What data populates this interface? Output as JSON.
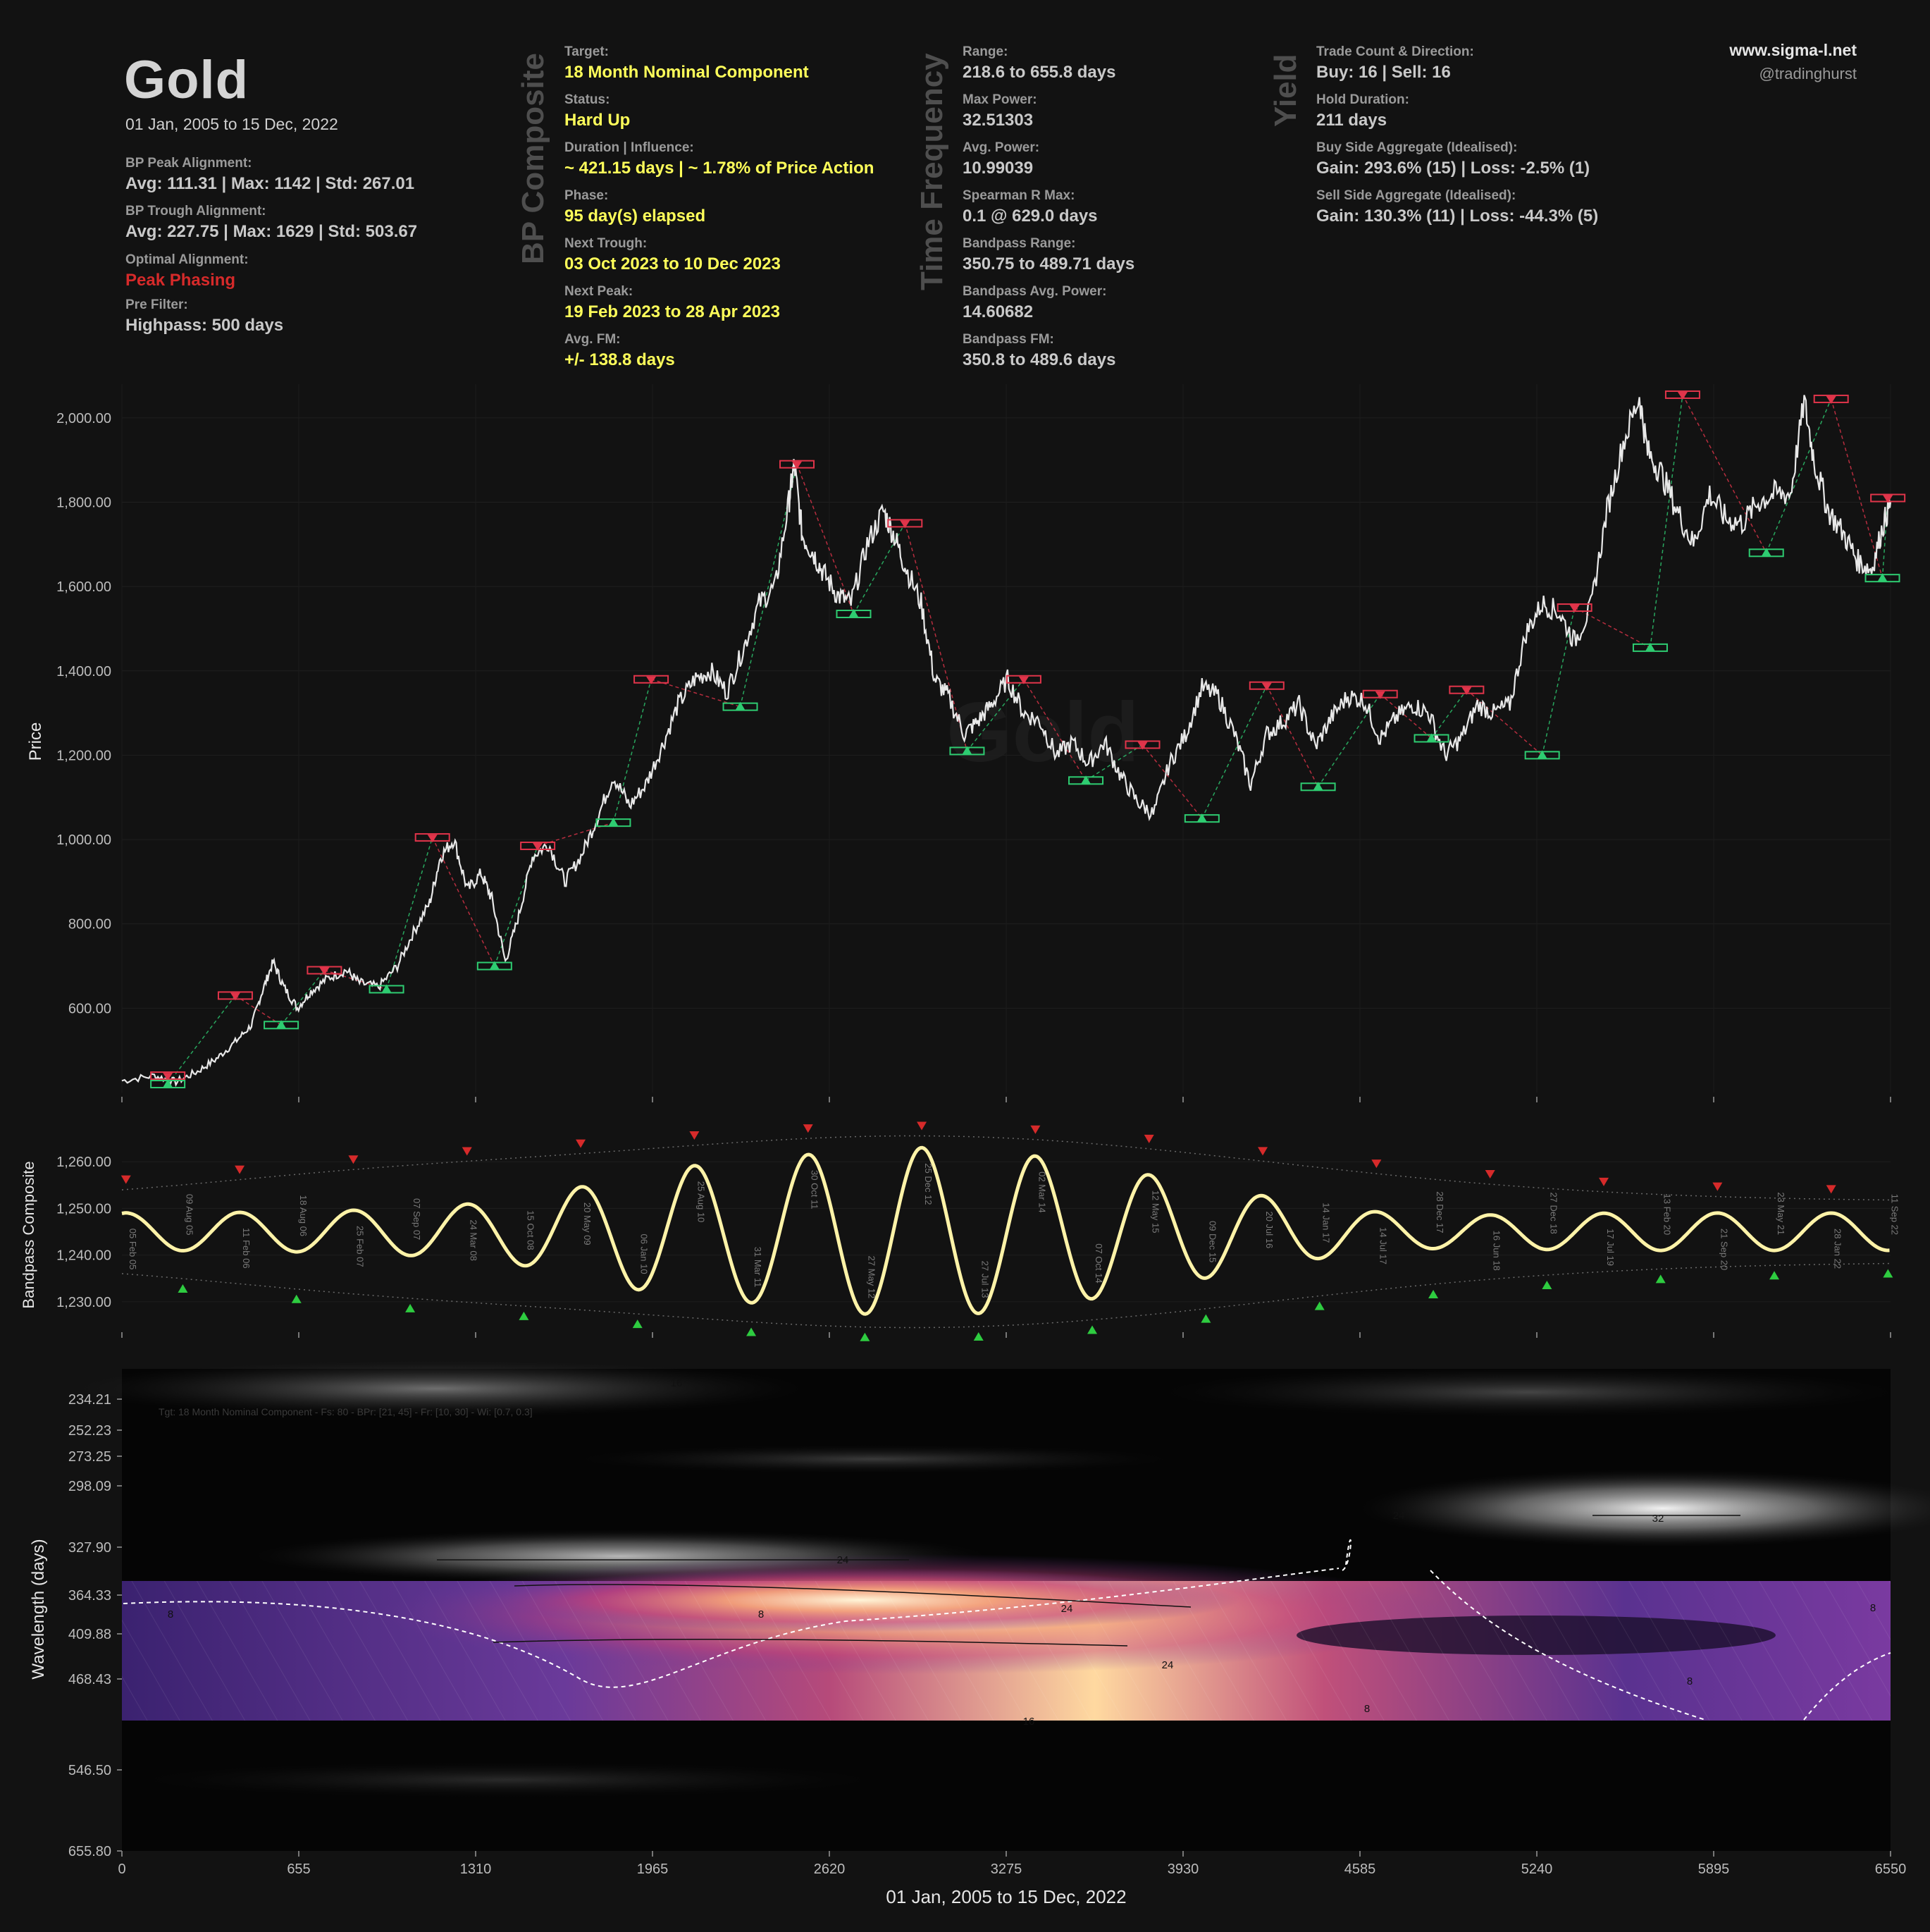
{
  "header": {
    "title": "Gold",
    "date_range": "01 Jan, 2005 to 15 Dec, 2022",
    "bp_peak_label": "BP Peak Alignment:",
    "bp_peak_value": "Avg: 111.31 | Max: 1142 | Std: 267.01",
    "bp_trough_label": "BP Trough Alignment:",
    "bp_trough_value": "Avg: 227.75 | Max: 1629 | Std: 503.67",
    "optimal_label": "Optimal Alignment:",
    "optimal_value": "Peak Phasing",
    "prefilter_label": "Pre Filter:",
    "prefilter_value": "Highpass: 500 days"
  },
  "bp_composite": {
    "heading": "BP Composite",
    "target_label": "Target:",
    "target_value": "18 Month Nominal Component",
    "status_label": "Status:",
    "status_value": "Hard Up",
    "duration_label": "Duration | Influence:",
    "duration_value": "~ 421.15 days | ~ 1.78% of Price Action",
    "phase_label": "Phase:",
    "phase_value": "95 day(s) elapsed",
    "next_trough_label": "Next Trough:",
    "next_trough_value": "03 Oct 2023 to 10 Dec 2023",
    "next_peak_label": "Next Peak:",
    "next_peak_value": "19 Feb 2023 to 28 Apr 2023",
    "avg_fm_label": "Avg. FM:",
    "avg_fm_value": "+/- 138.8 days"
  },
  "time_frequency": {
    "heading": "Time Frequency",
    "range_label": "Range:",
    "range_value": "218.6 to 655.8 days",
    "max_power_label": "Max Power:",
    "max_power_value": "32.51303",
    "avg_power_label": "Avg. Power:",
    "avg_power_value": "10.99039",
    "spearman_label": "Spearman R Max:",
    "spearman_value": "0.1 @ 629.0 days",
    "bp_range_label": "Bandpass Range:",
    "bp_range_value": "350.75 to 489.71 days",
    "bp_avg_power_label": "Bandpass Avg. Power:",
    "bp_avg_power_value": "14.60682",
    "bp_fm_label": "Bandpass FM:",
    "bp_fm_value": "350.8 to 489.6 days"
  },
  "yield": {
    "heading": "Yield",
    "trade_count_label": "Trade Count & Direction:",
    "trade_count_value": "Buy: 16 | Sell: 16",
    "hold_label": "Hold Duration:",
    "hold_value": "211 days",
    "buy_label": "Buy Side Aggregate (Idealised):",
    "buy_value": "Gain: 293.6% (15) | Loss: -2.5% (1)",
    "sell_label": "Sell Side Aggregate (Idealised):",
    "sell_value": "Gain: 130.3% (11) | Loss: -44.3% (5)"
  },
  "branding": {
    "site": "www.sigma-l.net",
    "handle": "@tradinghurst",
    "watermark": "Gold"
  },
  "colors": {
    "background": "#121212",
    "price": "#e8e8e8",
    "peak": "#e0344a",
    "trough": "#2ecc71",
    "bandpass": "#fff3a8"
  },
  "chart_data": [
    {
      "type": "line",
      "ylabel": "Price",
      "ylim": [
        400,
        2080
      ],
      "yticks": [
        "600.00",
        "800.00",
        "1,000.00",
        "1,200.00",
        "1,400.00",
        "1,600.00",
        "1,800.00",
        "2,000.00"
      ],
      "ytick_values": [
        600,
        800,
        1000,
        1200,
        1400,
        1600,
        1800,
        2000
      ],
      "xlim": [
        0,
        6550
      ],
      "series": [
        {
          "x": [
            0,
            120,
            200,
            280,
            350,
            420,
            480,
            520,
            560,
            600,
            650,
            700,
            760,
            830,
            880,
            950,
            1020,
            1080,
            1140,
            1180,
            1230,
            1280,
            1330,
            1370,
            1420,
            1470,
            1520,
            1580,
            1640,
            1700,
            1760,
            1820,
            1880,
            1940,
            2000,
            2060,
            2120,
            2180,
            2240,
            2300,
            2360,
            2420,
            2470,
            2490,
            2520,
            2560,
            2600,
            2650,
            2700,
            2760,
            2820,
            2860,
            2900,
            2960,
            3010,
            3060,
            3120,
            3170,
            3220,
            3280,
            3340,
            3400,
            3460,
            3520,
            3580,
            3640,
            3700,
            3760,
            3820,
            3880,
            3940,
            4000,
            4060,
            4120,
            4180,
            4240,
            4300,
            4360,
            4420,
            4480,
            4540,
            4600,
            4660,
            4720,
            4780,
            4840,
            4900,
            4960,
            5020,
            5080,
            5140,
            5200,
            5260,
            5320,
            5380,
            5440,
            5500,
            5560,
            5620,
            5650,
            5700,
            5760,
            5820,
            5880,
            5940,
            6000,
            6060,
            6120,
            6180,
            6230,
            6270,
            6320,
            6380,
            6430,
            6480,
            6520,
            6550
          ],
          "y": [
            428,
            440,
            425,
            450,
            480,
            520,
            560,
            640,
            710,
            650,
            600,
            640,
            670,
            690,
            660,
            650,
            700,
            780,
            850,
            960,
            1000,
            880,
            920,
            860,
            710,
            820,
            960,
            990,
            900,
            960,
            1050,
            1150,
            1080,
            1130,
            1220,
            1320,
            1380,
            1400,
            1350,
            1450,
            1560,
            1600,
            1800,
            1890,
            1720,
            1680,
            1630,
            1580,
            1560,
            1700,
            1780,
            1720,
            1650,
            1560,
            1380,
            1340,
            1250,
            1280,
            1320,
            1380,
            1300,
            1280,
            1200,
            1230,
            1180,
            1230,
            1150,
            1090,
            1060,
            1180,
            1250,
            1360,
            1340,
            1250,
            1130,
            1250,
            1280,
            1320,
            1220,
            1290,
            1340,
            1330,
            1240,
            1290,
            1320,
            1300,
            1200,
            1240,
            1320,
            1300,
            1320,
            1490,
            1560,
            1540,
            1470,
            1550,
            1780,
            1940,
            2050,
            1920,
            1870,
            1780,
            1700,
            1820,
            1760,
            1750,
            1800,
            1820,
            1820,
            2040,
            1890,
            1780,
            1720,
            1660,
            1640,
            1740,
            1800
          ]
        }
      ],
      "peak_markers": [
        {
          "x": 170,
          "y": 440
        },
        {
          "x": 420,
          "y": 630
        },
        {
          "x": 750,
          "y": 690
        },
        {
          "x": 1150,
          "y": 1005
        },
        {
          "x": 1540,
          "y": 985
        },
        {
          "x": 1960,
          "y": 1380
        },
        {
          "x": 2500,
          "y": 1890
        },
        {
          "x": 2900,
          "y": 1750
        },
        {
          "x": 3340,
          "y": 1380
        },
        {
          "x": 3780,
          "y": 1225
        },
        {
          "x": 4240,
          "y": 1365
        },
        {
          "x": 4660,
          "y": 1345
        },
        {
          "x": 4980,
          "y": 1355
        },
        {
          "x": 5380,
          "y": 1550
        },
        {
          "x": 5780,
          "y": 2055
        },
        {
          "x": 6330,
          "y": 2045
        },
        {
          "x": 6540,
          "y": 1810
        }
      ],
      "trough_markers": [
        {
          "x": 170,
          "y": 420
        },
        {
          "x": 590,
          "y": 560
        },
        {
          "x": 980,
          "y": 645
        },
        {
          "x": 1380,
          "y": 700
        },
        {
          "x": 1820,
          "y": 1040
        },
        {
          "x": 2290,
          "y": 1315
        },
        {
          "x": 2710,
          "y": 1535
        },
        {
          "x": 3130,
          "y": 1210
        },
        {
          "x": 3570,
          "y": 1140
        },
        {
          "x": 4000,
          "y": 1050
        },
        {
          "x": 4430,
          "y": 1125
        },
        {
          "x": 4850,
          "y": 1240
        },
        {
          "x": 5260,
          "y": 1200
        },
        {
          "x": 5660,
          "y": 1455
        },
        {
          "x": 6090,
          "y": 1680
        },
        {
          "x": 6520,
          "y": 1620
        }
      ]
    },
    {
      "type": "line",
      "ylabel": "Bandpass Composite",
      "ylim": [
        1225,
        1265
      ],
      "yticks": [
        "1,230.00",
        "1,240.00",
        "1,250.00",
        "1,260.00"
      ],
      "ytick_values": [
        1230,
        1240,
        1250,
        1260
      ],
      "xlim": [
        0,
        6550
      ],
      "date_labels": [
        "05 Feb 05",
        "09 Aug 05",
        "11 Feb 06",
        "18 Aug 06",
        "25 Feb 07",
        "07 Sep 07",
        "24 Mar 08",
        "15 Oct 08",
        "20 May 09",
        "06 Jan 10",
        "25 Aug 10",
        "31 Mar 11",
        "30 Oct 11",
        "27 May 12",
        "25 Dec 12",
        "27 Jul 13",
        "02 Mar 14",
        "07 Oct 14",
        "12 May 15",
        "09 Dec 15",
        "20 Jul 16",
        "14 Jan 17",
        "14 Jul 17",
        "28 Dec 17",
        "16 Jun 18",
        "27 Dec 18",
        "17 Jul 19",
        "13 Feb 20",
        "21 Sep 20",
        "23 May 21",
        "28 Jan 22",
        "11 Sep 22"
      ]
    },
    {
      "type": "heatmap",
      "ylabel": "Wavelength (days)",
      "xlabel": "01 Jan, 2005 to 15 Dec, 2022",
      "yticks": [
        "234.21",
        "252.23",
        "273.25",
        "298.09",
        "327.90",
        "364.33",
        "409.88",
        "468.43",
        "546.50",
        "655.80"
      ],
      "xticks": [
        "0",
        "655",
        "1310",
        "1965",
        "2620",
        "3275",
        "3930",
        "4585",
        "5240",
        "5895",
        "6550"
      ],
      "annotation": "Tgt: 18 Month Nominal Component - Fs: 80 - BPr: [21, 45] - Fr: [10, 30] - Wi: [0.7, 0.3]",
      "contour_labels": [
        "16",
        "24",
        "32",
        "24",
        "8",
        "8",
        "24",
        "24",
        "8",
        "8",
        "8",
        "16"
      ]
    }
  ]
}
